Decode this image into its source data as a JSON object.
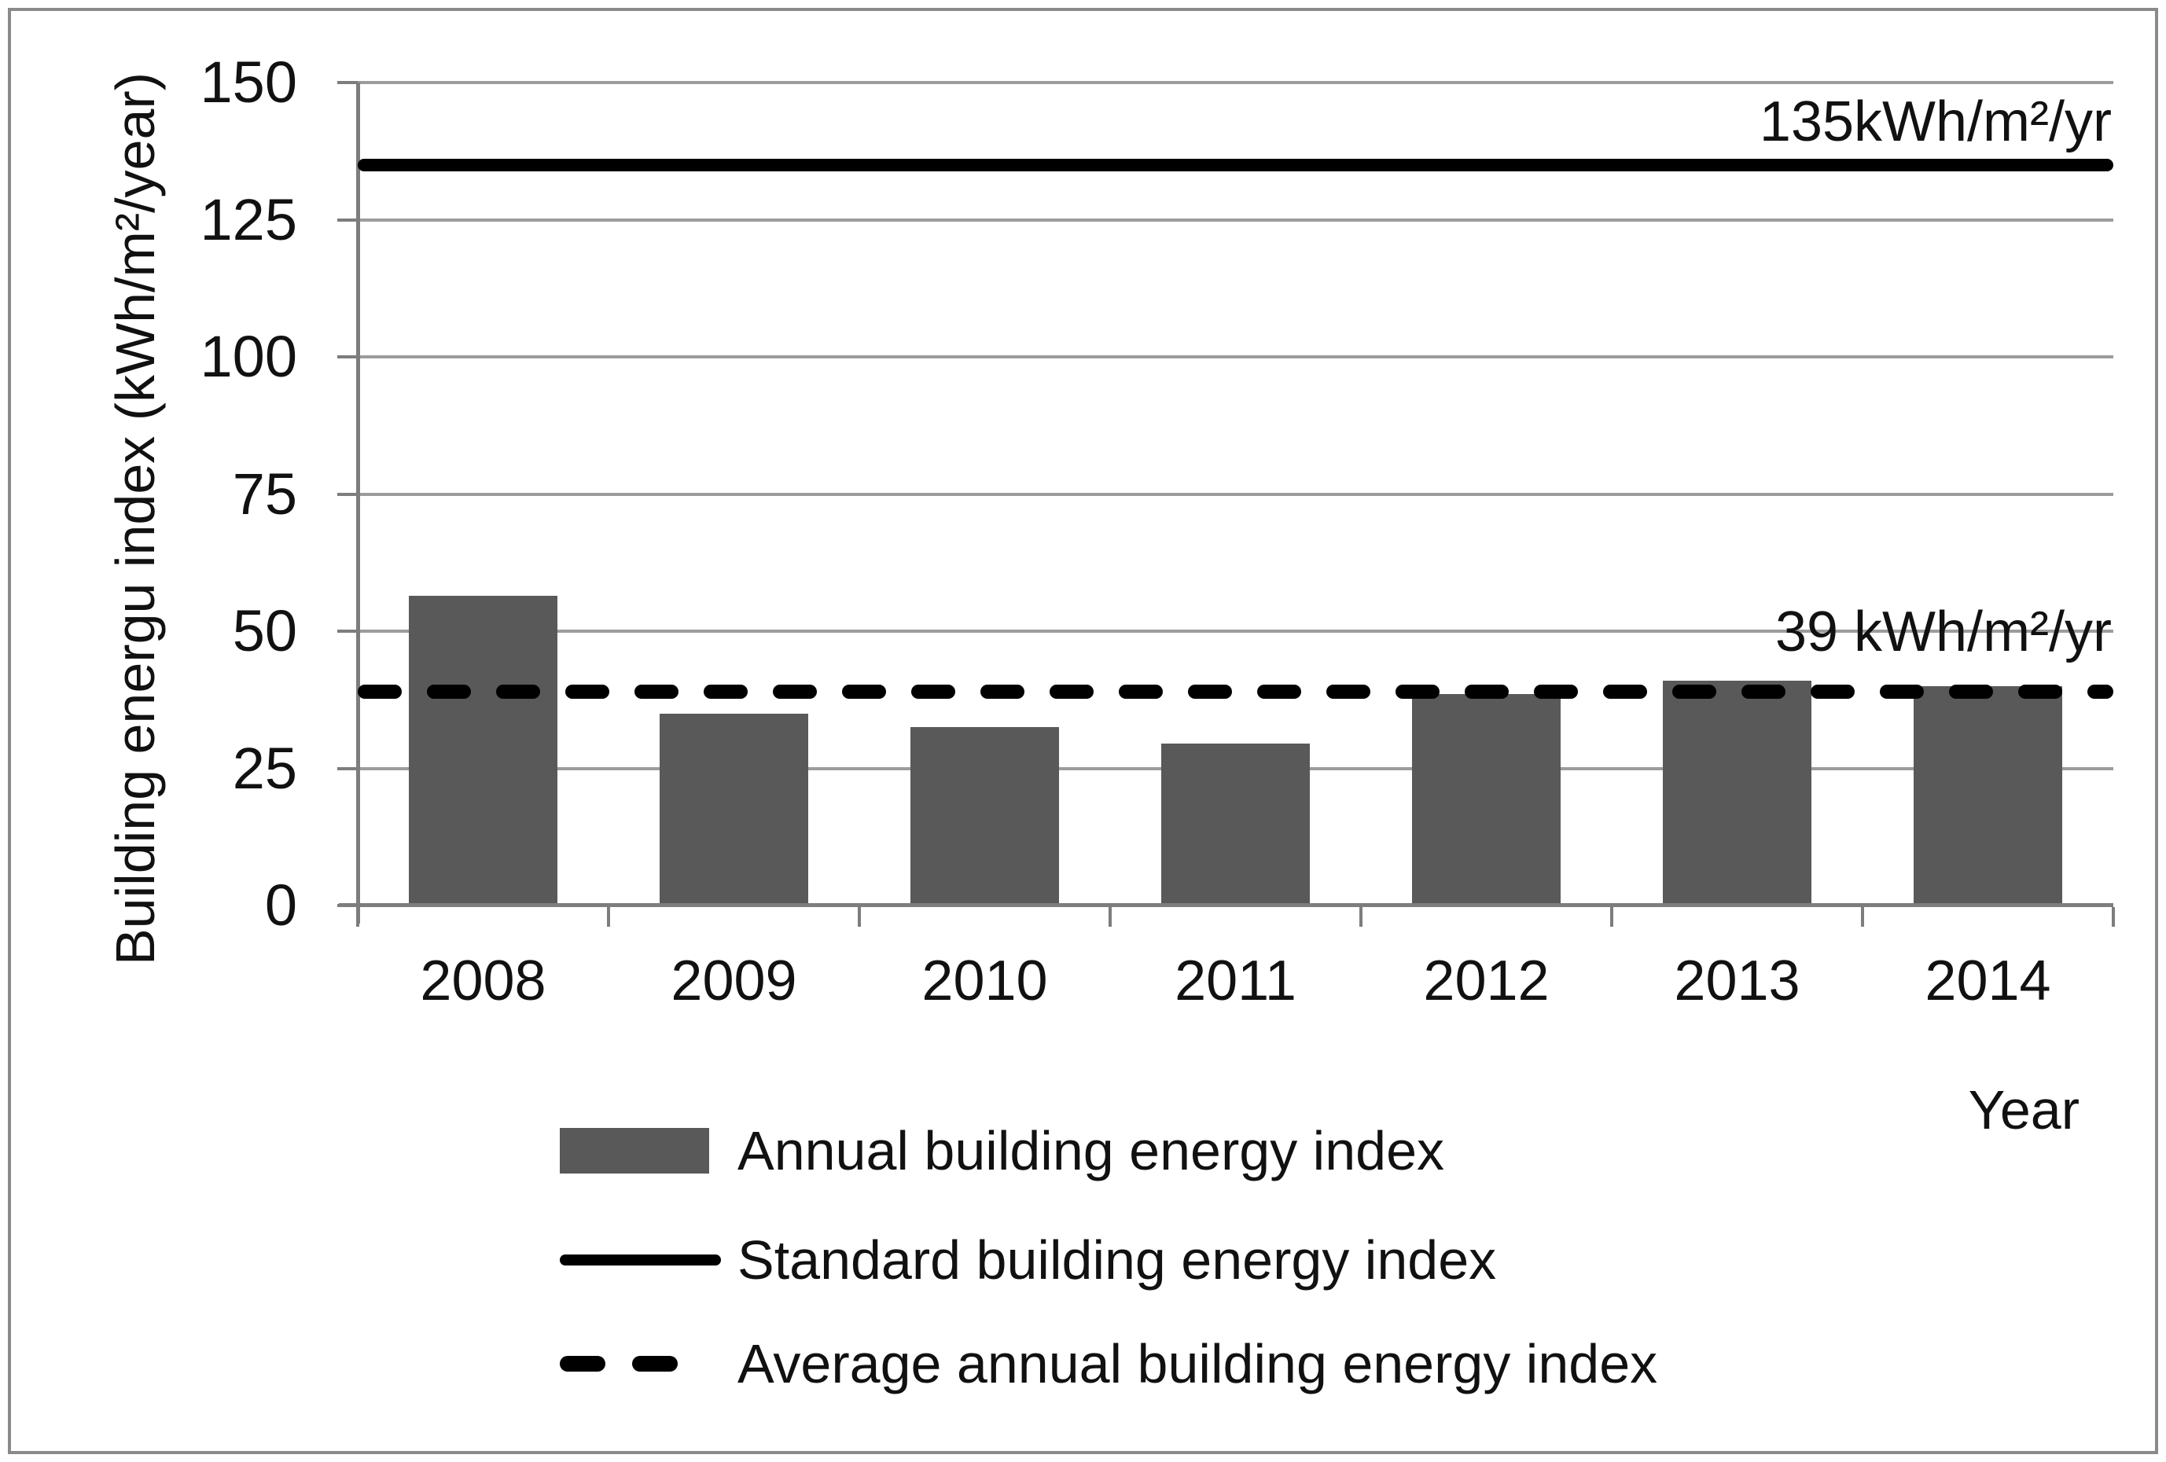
{
  "chart_data": {
    "type": "bar",
    "categories": [
      "2008",
      "2009",
      "2010",
      "2011",
      "2012",
      "2013",
      "2014"
    ],
    "series": [
      {
        "name": "Annual building energy index",
        "values": [
          56.5,
          35,
          32.5,
          29.5,
          38.5,
          41,
          40
        ]
      }
    ],
    "xlabel": "Year",
    "ylabel": "Building energu index (kWh/m²/year)",
    "ylim": [
      0,
      150
    ],
    "yticks": [
      0,
      25,
      50,
      75,
      100,
      125,
      150
    ],
    "grid": "horizontal-gray-lines",
    "legend_position": "bottom-left",
    "reference_lines": [
      {
        "name": "Standard building energy index",
        "value": 135,
        "style": "solid",
        "label": "135kWh/m²/yr"
      },
      {
        "name": "Average annual building energy index",
        "value": 39,
        "style": "dashed",
        "label": "39 kWh/m²/yr"
      }
    ],
    "legend": {
      "items": [
        {
          "swatch": "bar",
          "label": "Annual building energy index"
        },
        {
          "swatch": "solid-line",
          "label": "Standard building energy index"
        },
        {
          "swatch": "dashed-line",
          "label": "Average annual building energy index"
        }
      ]
    },
    "colors": {
      "bar": "#595959",
      "reference_line": "#000000",
      "gridline": "#9c9c9c",
      "axis": "#7d7d7d",
      "text": "#111111",
      "frame_border": "#8a8a8a",
      "background": "#ffffff"
    }
  }
}
